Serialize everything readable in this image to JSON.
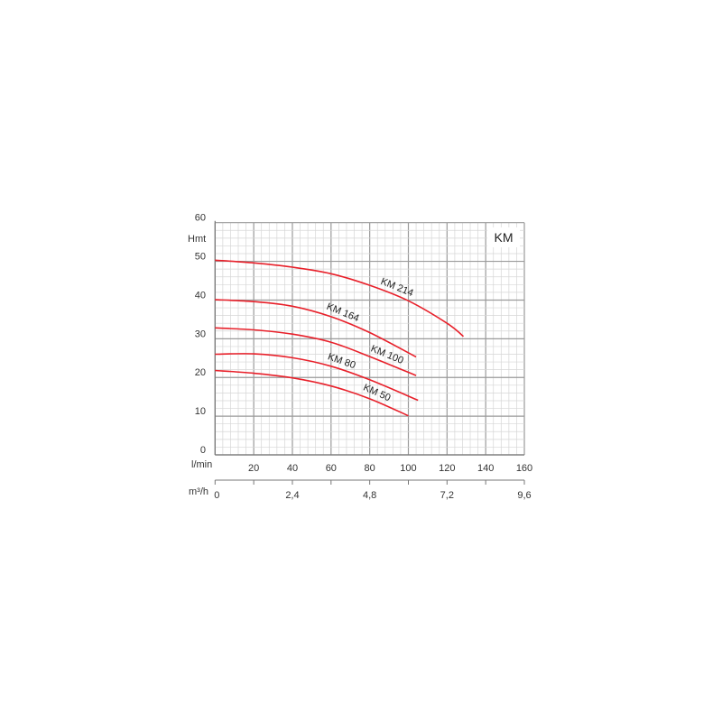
{
  "chart_data": {
    "type": "line",
    "title": "KM",
    "xlabel": "l/min",
    "ylabel": "Hmt",
    "secondary_xlabel": "m³/h",
    "xlim": [
      0,
      160
    ],
    "ylim": [
      0,
      60
    ],
    "x_ticks": [
      "20",
      "40",
      "60",
      "80",
      "100",
      "120",
      "140",
      "160"
    ],
    "y_ticks": [
      "0",
      "10",
      "20",
      "30",
      "40",
      "50",
      "60"
    ],
    "secondary_x_ticks": [
      {
        "label": "0",
        "at": 0
      },
      {
        "label": "2,4",
        "at": 40
      },
      {
        "label": "4,8",
        "at": 80
      },
      {
        "label": "7,2",
        "at": 120
      },
      {
        "label": "9,6",
        "at": 160
      }
    ],
    "grid": true,
    "line_color": "#e8202a",
    "series": [
      {
        "name": "KM 214",
        "x": [
          0,
          20,
          40,
          60,
          80,
          100,
          120,
          128.5
        ],
        "y": [
          50.3,
          49.6,
          48.5,
          46.8,
          43.8,
          39.8,
          34,
          30.6
        ]
      },
      {
        "name": "KM 164",
        "x": [
          0,
          20,
          40,
          60,
          80,
          104
        ],
        "y": [
          40.1,
          39.6,
          38.4,
          35.7,
          31.6,
          25.3
        ]
      },
      {
        "name": "KM 100",
        "x": [
          0,
          20,
          40,
          60,
          80,
          104
        ],
        "y": [
          32.8,
          32.3,
          31.2,
          29.1,
          25.4,
          20.5
        ]
      },
      {
        "name": "KM 80",
        "x": [
          0,
          20,
          40,
          60,
          80,
          105
        ],
        "y": [
          26,
          26.1,
          25.1,
          22.9,
          19.4,
          14.1
        ]
      },
      {
        "name": "KM 50",
        "x": [
          0,
          20,
          40,
          60,
          80,
          100
        ],
        "y": [
          21.8,
          21.1,
          19.9,
          17.8,
          14.5,
          10.1
        ]
      }
    ]
  }
}
